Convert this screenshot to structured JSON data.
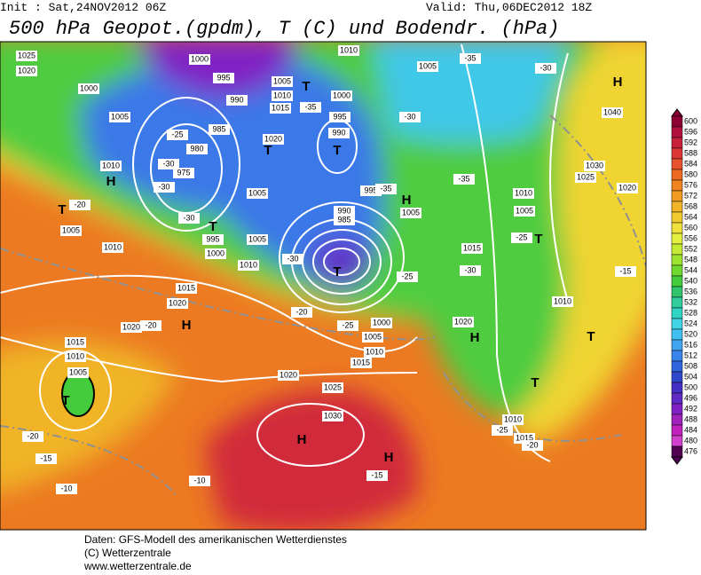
{
  "header": {
    "init": "Init : Sat,24NOV2012 06Z",
    "valid": "Valid: Thu,06DEC2012 18Z",
    "title": "500 hPa Geopot.(gpdm), T (C) und Bodendr. (hPa)"
  },
  "map": {
    "pressure_labels": [
      "1025",
      "1020",
      "1000",
      "1005",
      "1010",
      "1005",
      "1010",
      "1000",
      "995",
      "990",
      "985",
      "980",
      "975",
      "1005",
      "1010",
      "1015",
      "1020",
      "1000",
      "995",
      "990",
      "1005",
      "995",
      "1000",
      "1005",
      "1010",
      "995",
      "1005",
      "990",
      "985",
      "1015",
      "1020",
      "1020",
      "1015",
      "1010",
      "1005",
      "1020",
      "1025",
      "1030",
      "1000",
      "1005",
      "1010",
      "1015",
      "1005",
      "1010",
      "1005",
      "1010",
      "1015",
      "1020",
      "1010",
      "1040",
      "1030",
      "1025",
      "1020",
      "1010",
      "1015"
    ],
    "temperature_labels": [
      "-30",
      "-35",
      "-30",
      "-35",
      "-35",
      "-30",
      "-25",
      "-30",
      "-20",
      "-25",
      "-20",
      "-20",
      "-30",
      "-30",
      "-30",
      "-25",
      "-20",
      "-15",
      "-10",
      "-10",
      "-15",
      "-25",
      "-20",
      "-15",
      "-35",
      "-25"
    ],
    "centers": [
      "H",
      "T",
      "T",
      "T",
      "H",
      "T",
      "T",
      "T",
      "H",
      "T",
      "H",
      "H",
      "T",
      "T",
      "T",
      "H",
      "H"
    ]
  },
  "colorbar": {
    "levels": [
      600,
      596,
      592,
      588,
      584,
      580,
      576,
      572,
      568,
      564,
      560,
      556,
      552,
      548,
      544,
      540,
      536,
      532,
      528,
      524,
      520,
      516,
      512,
      508,
      504,
      500,
      496,
      492,
      488,
      484,
      480,
      476
    ],
    "colors": [
      "#8c0034",
      "#b01040",
      "#c8203c",
      "#dc3636",
      "#e6522c",
      "#ec6a22",
      "#f08420",
      "#f09c22",
      "#f0b428",
      "#f0cc30",
      "#f0e03c",
      "#e4f040",
      "#c4ec34",
      "#9ce430",
      "#70d830",
      "#44cc3c",
      "#30c46c",
      "#30cc9c",
      "#30d4c4",
      "#40d4e4",
      "#40c0f0",
      "#40a4f0",
      "#3884ec",
      "#3064dc",
      "#3048cc",
      "#4430c4",
      "#6028c4",
      "#8020c4",
      "#a020bc",
      "#c020bc",
      "#d040cc",
      "#500050"
    ]
  },
  "footer": [
    "Daten: GFS-Modell des amerikanischen Wetterdienstes",
    "(C) Wetterzentrale",
    "www.wetterzentrale.de"
  ]
}
